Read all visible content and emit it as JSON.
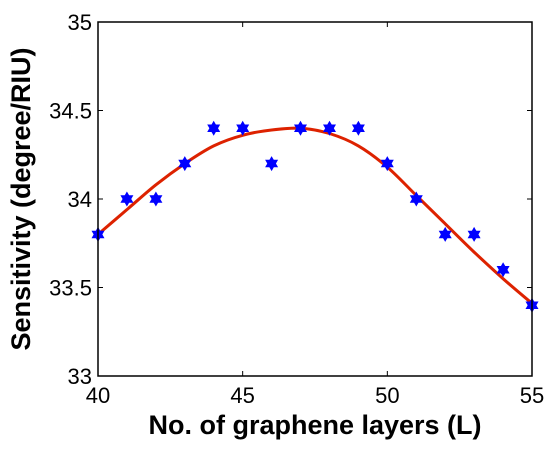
{
  "chart_data": {
    "type": "scatter",
    "title": "",
    "xlabel": "No. of graphene layers (L)",
    "ylabel": "Sensitivity (degree/RIU)",
    "xlim": [
      40,
      55
    ],
    "ylim": [
      33,
      35
    ],
    "xticks": [
      "40",
      "45",
      "50",
      "55"
    ],
    "yticks": [
      "33",
      "33.5",
      "34",
      "34.5",
      "35"
    ],
    "grid": false,
    "legend": "none",
    "series": [
      {
        "kind": "scatter",
        "marker": "hexagram",
        "color": "#0000ff",
        "x": [
          40,
          41,
          42,
          43,
          44,
          45,
          46,
          47,
          48,
          49,
          50,
          51,
          52,
          53,
          54,
          55
        ],
        "y": [
          33.8,
          34.0,
          34.0,
          34.2,
          34.4,
          34.4,
          34.2,
          34.4,
          34.4,
          34.4,
          34.2,
          34.0,
          33.8,
          33.8,
          33.6,
          33.4
        ]
      },
      {
        "kind": "line",
        "color": "#dd2200",
        "x": [
          40,
          41,
          42,
          43,
          44,
          45,
          46,
          47,
          48,
          49,
          50,
          51,
          52,
          53,
          54,
          55
        ],
        "y": [
          33.8,
          33.94,
          34.08,
          34.2,
          34.3,
          34.36,
          34.39,
          34.4,
          34.37,
          34.3,
          34.18,
          34.02,
          33.86,
          33.7,
          33.55,
          33.41
        ]
      }
    ]
  }
}
